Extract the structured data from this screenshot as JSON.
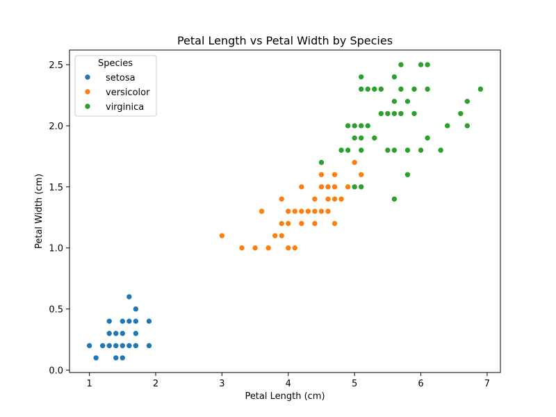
{
  "chart_data": {
    "type": "scatter",
    "title": "Petal Length vs Petal Width by Species",
    "xlabel": "Petal Length (cm)",
    "ylabel": "Petal Width (cm)",
    "xlim": [
      0.7,
      7.2
    ],
    "ylim": [
      -0.02,
      2.62
    ],
    "xticks": [
      1,
      2,
      3,
      4,
      5,
      6,
      7
    ],
    "xtick_labels": [
      "1",
      "2",
      "3",
      "4",
      "5",
      "6",
      "7"
    ],
    "yticks": [
      0.0,
      0.5,
      1.0,
      1.5,
      2.0,
      2.5
    ],
    "ytick_labels": [
      "0.0",
      "0.5",
      "1.0",
      "1.5",
      "2.0",
      "2.5"
    ],
    "grid": false,
    "legend": {
      "title": "Species",
      "placement": "top-left"
    },
    "series": [
      {
        "name": "setosa",
        "color": "#1f77b4",
        "points": [
          [
            1.0,
            0.2
          ],
          [
            1.1,
            0.1
          ],
          [
            1.2,
            0.2
          ],
          [
            1.3,
            0.2
          ],
          [
            1.3,
            0.3
          ],
          [
            1.3,
            0.4
          ],
          [
            1.4,
            0.1
          ],
          [
            1.4,
            0.2
          ],
          [
            1.4,
            0.3
          ],
          [
            1.5,
            0.1
          ],
          [
            1.5,
            0.2
          ],
          [
            1.5,
            0.3
          ],
          [
            1.5,
            0.4
          ],
          [
            1.6,
            0.2
          ],
          [
            1.6,
            0.4
          ],
          [
            1.6,
            0.6
          ],
          [
            1.7,
            0.2
          ],
          [
            1.7,
            0.3
          ],
          [
            1.7,
            0.4
          ],
          [
            1.7,
            0.5
          ],
          [
            1.9,
            0.2
          ],
          [
            1.9,
            0.4
          ]
        ]
      },
      {
        "name": "versicolor",
        "color": "#ff7f0e",
        "points": [
          [
            3.0,
            1.1
          ],
          [
            3.3,
            1.0
          ],
          [
            3.5,
            1.0
          ],
          [
            3.6,
            1.3
          ],
          [
            3.7,
            1.0
          ],
          [
            3.8,
            1.1
          ],
          [
            3.9,
            1.1
          ],
          [
            3.9,
            1.2
          ],
          [
            3.9,
            1.4
          ],
          [
            4.0,
            1.0
          ],
          [
            4.0,
            1.2
          ],
          [
            4.0,
            1.3
          ],
          [
            4.1,
            1.0
          ],
          [
            4.1,
            1.3
          ],
          [
            4.2,
            1.2
          ],
          [
            4.2,
            1.3
          ],
          [
            4.2,
            1.5
          ],
          [
            4.3,
            1.3
          ],
          [
            4.4,
            1.2
          ],
          [
            4.4,
            1.3
          ],
          [
            4.4,
            1.4
          ],
          [
            4.5,
            1.3
          ],
          [
            4.5,
            1.5
          ],
          [
            4.5,
            1.6
          ],
          [
            4.6,
            1.3
          ],
          [
            4.6,
            1.4
          ],
          [
            4.6,
            1.5
          ],
          [
            4.7,
            1.2
          ],
          [
            4.7,
            1.4
          ],
          [
            4.7,
            1.5
          ],
          [
            4.7,
            1.6
          ],
          [
            4.8,
            1.4
          ],
          [
            4.9,
            1.5
          ],
          [
            5.0,
            1.7
          ],
          [
            5.1,
            1.6
          ]
        ]
      },
      {
        "name": "virginica",
        "color": "#2ca02c",
        "points": [
          [
            4.5,
            1.7
          ],
          [
            4.8,
            1.8
          ],
          [
            4.9,
            1.8
          ],
          [
            4.9,
            2.0
          ],
          [
            5.0,
            1.5
          ],
          [
            5.0,
            1.9
          ],
          [
            5.0,
            2.0
          ],
          [
            5.1,
            1.5
          ],
          [
            5.1,
            1.8
          ],
          [
            5.1,
            1.9
          ],
          [
            5.1,
            2.0
          ],
          [
            5.1,
            2.3
          ],
          [
            5.1,
            2.4
          ],
          [
            5.2,
            2.0
          ],
          [
            5.2,
            2.3
          ],
          [
            5.3,
            1.9
          ],
          [
            5.3,
            2.3
          ],
          [
            5.4,
            2.1
          ],
          [
            5.4,
            2.3
          ],
          [
            5.5,
            1.8
          ],
          [
            5.5,
            2.1
          ],
          [
            5.6,
            1.4
          ],
          [
            5.6,
            1.8
          ],
          [
            5.6,
            2.1
          ],
          [
            5.6,
            2.2
          ],
          [
            5.6,
            2.4
          ],
          [
            5.7,
            2.1
          ],
          [
            5.7,
            2.3
          ],
          [
            5.7,
            2.5
          ],
          [
            5.8,
            1.6
          ],
          [
            5.8,
            1.8
          ],
          [
            5.8,
            2.2
          ],
          [
            5.9,
            2.1
          ],
          [
            5.9,
            2.3
          ],
          [
            6.0,
            1.8
          ],
          [
            6.0,
            2.5
          ],
          [
            6.1,
            1.9
          ],
          [
            6.1,
            2.3
          ],
          [
            6.1,
            2.5
          ],
          [
            6.3,
            1.8
          ],
          [
            6.4,
            2.0
          ],
          [
            6.6,
            2.1
          ],
          [
            6.7,
            2.0
          ],
          [
            6.7,
            2.2
          ],
          [
            6.9,
            2.3
          ]
        ]
      }
    ]
  }
}
